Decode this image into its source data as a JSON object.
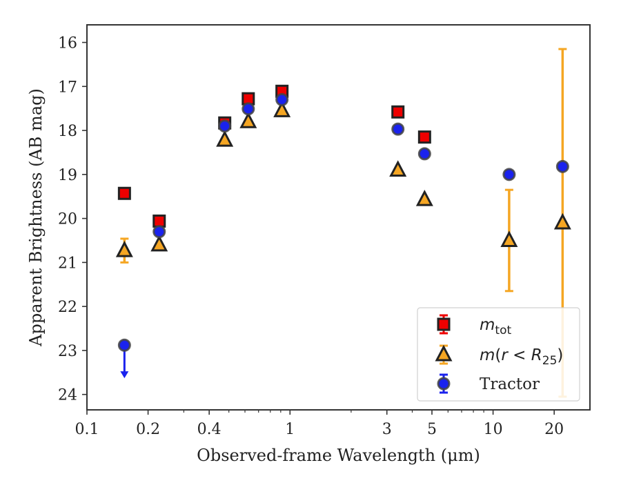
{
  "chart_data": {
    "type": "scatter",
    "title": "",
    "xlabel": "Observed-frame Wavelength (μm)",
    "ylabel": "Apparent Brightness (AB mag)",
    "x_scale": "log",
    "y_inverted": true,
    "xlim": [
      0.1,
      30
    ],
    "ylim": [
      24.35,
      15.6
    ],
    "x_ticks": [
      0.1,
      0.2,
      0.4,
      1,
      3,
      5,
      10,
      20
    ],
    "x_tick_labels": [
      "0.1",
      "0.2",
      "0.4",
      "1",
      "3",
      "5",
      "10",
      "20"
    ],
    "y_ticks": [
      16,
      17,
      18,
      19,
      20,
      21,
      22,
      23,
      24
    ],
    "y_tick_labels": [
      "16",
      "17",
      "18",
      "19",
      "20",
      "21",
      "22",
      "23",
      "24"
    ],
    "grid": false,
    "legend_position": "lower-right",
    "colors": {
      "mtot": "#ee0000",
      "r25": "#f5a623",
      "tractor": "#1a22ee",
      "edge": "#222222"
    },
    "series": [
      {
        "key": "mtot",
        "name": "m_tot",
        "marker": "square",
        "points": [
          {
            "x": 0.153,
            "y": 19.43
          },
          {
            "x": 0.227,
            "y": 20.06
          },
          {
            "x": 0.477,
            "y": 17.83
          },
          {
            "x": 0.623,
            "y": 17.28
          },
          {
            "x": 0.913,
            "y": 17.11
          },
          {
            "x": 3.4,
            "y": 17.58
          },
          {
            "x": 4.6,
            "y": 18.15
          }
        ]
      },
      {
        "key": "r25",
        "name": "m(r < R_25)",
        "marker": "triangle",
        "points": [
          {
            "x": 0.153,
            "y": 20.73,
            "err": 0.27
          },
          {
            "x": 0.227,
            "y": 20.6
          },
          {
            "x": 0.477,
            "y": 18.22
          },
          {
            "x": 0.623,
            "y": 17.8
          },
          {
            "x": 0.913,
            "y": 17.55
          },
          {
            "x": 3.4,
            "y": 18.9
          },
          {
            "x": 4.6,
            "y": 19.57
          },
          {
            "x": 12.0,
            "y": 20.5,
            "err": 1.15
          },
          {
            "x": 22.0,
            "y": 20.1,
            "err": 3.95
          }
        ]
      },
      {
        "key": "tractor",
        "name": "Tractor",
        "marker": "circle",
        "points": [
          {
            "x": 0.153,
            "y": 22.88,
            "upper_limit": true
          },
          {
            "x": 0.227,
            "y": 20.3
          },
          {
            "x": 0.477,
            "y": 17.9
          },
          {
            "x": 0.623,
            "y": 17.51
          },
          {
            "x": 0.913,
            "y": 17.3
          },
          {
            "x": 3.4,
            "y": 17.97
          },
          {
            "x": 4.6,
            "y": 18.53
          },
          {
            "x": 12.0,
            "y": 19.0
          },
          {
            "x": 22.0,
            "y": 18.82
          }
        ]
      }
    ]
  }
}
